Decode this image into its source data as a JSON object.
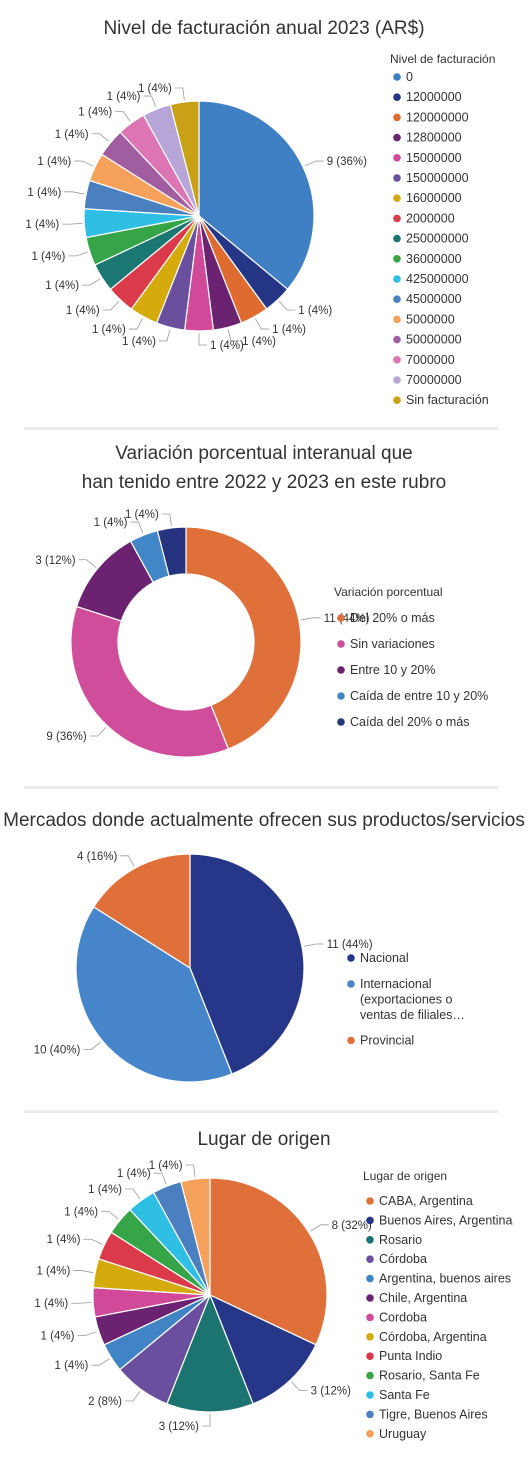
{
  "chart_data": [
    {
      "type": "pie",
      "title": "Nivel de facturación anual 2023 (AR$)",
      "legend_title": "Nivel de facturación",
      "legend_position": "right",
      "slices": [
        {
          "label": "0",
          "value": 9,
          "display": "9 (36%)",
          "color": "#3f7fc3"
        },
        {
          "label": "12000000",
          "value": 1,
          "display": "1 (4%)",
          "color": "#253686"
        },
        {
          "label": "120000000",
          "value": 1,
          "display": "1 (4%)",
          "color": "#e06b31"
        },
        {
          "label": "12800000",
          "value": 1,
          "display": "1 (4%)",
          "color": "#6b2271"
        },
        {
          "label": "15000000",
          "value": 1,
          "display": "1 (4%)",
          "color": "#d14999"
        },
        {
          "label": "150000000",
          "value": 1,
          "display": "1 (4%)",
          "color": "#6a4f9e"
        },
        {
          "label": "16000000",
          "value": 1,
          "display": "1 (4%)",
          "color": "#d4aa0d"
        },
        {
          "label": "2000000",
          "value": 1,
          "display": "1 (4%)",
          "color": "#db3a4a"
        },
        {
          "label": "250000000",
          "value": 1,
          "display": "1 (4%)",
          "color": "#1b7772"
        },
        {
          "label": "36000000",
          "value": 1,
          "display": "1 (4%)",
          "color": "#35a548"
        },
        {
          "label": "425000000",
          "value": 1,
          "display": "1 (4%)",
          "color": "#2fbfe5"
        },
        {
          "label": "45000000",
          "value": 1,
          "display": "1 (4%)",
          "color": "#4a7fc0"
        },
        {
          "label": "5000000",
          "value": 1,
          "display": "1 (4%)",
          "color": "#f5a15c"
        },
        {
          "label": "50000000",
          "value": 1,
          "display": "1 (4%)",
          "color": "#a05ea0"
        },
        {
          "label": "7000000",
          "value": 1,
          "display": "1 (4%)",
          "color": "#dd74b4"
        },
        {
          "label": "70000000",
          "value": 1,
          "display": "1 (4%)",
          "color": "#b7a5d8"
        },
        {
          "label": "Sin facturación",
          "value": 1,
          "display": "1 (4%)",
          "color": "#c8a116"
        }
      ]
    },
    {
      "type": "donut",
      "title": "Variación porcentual interanual que han tenido entre 2022 y 2023 en este rubro",
      "title_lines": [
        "Variación porcentual interanual que",
        "han tenido entre 2022 y 2023 en este rubro"
      ],
      "legend_title": "Variación porcentual",
      "legend_position": "right",
      "slices": [
        {
          "label": "Del 20% o más",
          "value": 11,
          "display": "11 (44%)",
          "color": "#e0703a"
        },
        {
          "label": "Sin variaciones",
          "value": 9,
          "display": "9 (36%)",
          "color": "#cf4d9b"
        },
        {
          "label": "Entre 10 y 20%",
          "value": 3,
          "display": "3 (12%)",
          "color": "#6b2271"
        },
        {
          "label": "Caída de entre 10 y 20%",
          "value": 1,
          "display": "1 (4%)",
          "color": "#4186c6"
        },
        {
          "label": "Caída del 20% o más",
          "value": 1,
          "display": "1 (4%)",
          "color": "#26337f"
        }
      ]
    },
    {
      "type": "pie",
      "title": "Mercados donde actualmente ofrecen sus productos/servicios",
      "legend_position": "right",
      "slices": [
        {
          "label": "Nacional",
          "value": 11,
          "display": "11 (44%)",
          "color": "#26378a"
        },
        {
          "label": "Internacional (exportaciones o ventas de filiales…",
          "label_lines": [
            "Internacional",
            "(exportaciones o",
            "ventas de filiales…"
          ],
          "value": 10,
          "display": "10 (40%)",
          "color": "#4685c9"
        },
        {
          "label": "Provincial",
          "value": 4,
          "display": "4 (16%)",
          "color": "#e0703a"
        }
      ]
    },
    {
      "type": "pie",
      "title": "Lugar de origen",
      "legend_title": "Lugar de origen",
      "legend_position": "right",
      "slices": [
        {
          "label": "CABA, Argentina",
          "value": 8,
          "display": "8 (32%)",
          "color": "#e0703a"
        },
        {
          "label": "Buenos Aires, Argentina",
          "value": 3,
          "display": "3 (12%)",
          "color": "#26378a"
        },
        {
          "label": "Rosario",
          "value": 3,
          "display": "3 (12%)",
          "color": "#1c7471"
        },
        {
          "label": "Córdoba",
          "value": 2,
          "display": "2 (8%)",
          "color": "#6a4f9e"
        },
        {
          "label": "Argentina, buenos aires",
          "value": 1,
          "display": "1 (4%)",
          "color": "#4184c6"
        },
        {
          "label": "Chile, Argentina",
          "value": 1,
          "display": "1 (4%)",
          "color": "#6b2271"
        },
        {
          "label": "Cordoba",
          "value": 1,
          "display": "1 (4%)",
          "color": "#d14999"
        },
        {
          "label": "Córdoba, Argentina",
          "value": 1,
          "display": "1 (4%)",
          "color": "#d4aa0d"
        },
        {
          "label": "Punta Indio",
          "value": 1,
          "display": "1 (4%)",
          "color": "#db3a4a"
        },
        {
          "label": "Rosario, Santa Fe",
          "value": 1,
          "display": "1 (4%)",
          "color": "#35a548"
        },
        {
          "label": "Santa Fe",
          "value": 1,
          "display": "1 (4%)",
          "color": "#2fbfe5"
        },
        {
          "label": "Tigre, Buenos Aires",
          "value": 1,
          "display": "1 (4%)",
          "color": "#4a7fc0"
        },
        {
          "label": "Uruguay",
          "value": 1,
          "display": "1 (4%)",
          "color": "#f5a15c"
        }
      ]
    }
  ]
}
